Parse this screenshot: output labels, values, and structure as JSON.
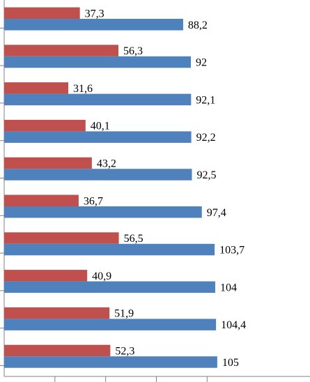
{
  "chart_data": {
    "type": "bar",
    "orientation": "horizontal",
    "value_axis_range": [
      0,
      120
    ],
    "grid": false,
    "legend": "none",
    "series": [
      {
        "color": "#c0504d",
        "values": [
          37.3,
          56.3,
          31.6,
          40.1,
          43.2,
          36.7,
          56.5,
          40.9,
          51.9,
          52.3
        ],
        "labels": [
          "37,3",
          "56,3",
          "31,6",
          "40,1",
          "43,2",
          "36,7",
          "56,5",
          "40,9",
          "51,9",
          "52,3"
        ]
      },
      {
        "color": "#4f81bd",
        "values": [
          88.2,
          92,
          92.1,
          92.2,
          92.5,
          97.4,
          103.7,
          104,
          104.4,
          105
        ],
        "labels": [
          "88,2",
          "92",
          "92,1",
          "92,2",
          "92,5",
          "97,4",
          "103,7",
          "104",
          "104,4",
          "105"
        ]
      }
    ]
  }
}
